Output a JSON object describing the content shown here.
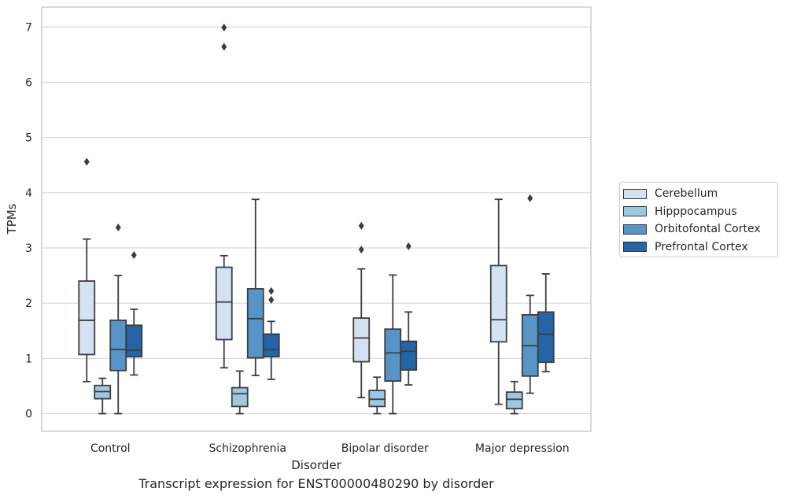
{
  "chart_data": {
    "type": "box",
    "caption": "Transcript expression for ENST00000480290 by disorder",
    "xlabel": "Disorder",
    "ylabel": "TPMs",
    "ylim": [
      -0.32,
      7.36
    ],
    "yticks": [
      0,
      1,
      2,
      3,
      4,
      5,
      6,
      7
    ],
    "grid": "horizontal",
    "legend_position": "right",
    "categories": [
      "Control",
      "Schizophrenia",
      "Bipolar disorder",
      "Major depression"
    ],
    "series": [
      {
        "name": "Cerebellum",
        "color": "#d3e1f0",
        "boxes": [
          {
            "whislo": 0.58,
            "q1": 1.07,
            "med": 1.69,
            "q3": 2.4,
            "whishi": 3.16,
            "fliers": [
              4.56
            ]
          },
          {
            "whislo": 0.83,
            "q1": 1.34,
            "med": 2.02,
            "q3": 2.65,
            "whishi": 2.86,
            "fliers": [
              6.99,
              6.64
            ]
          },
          {
            "whislo": 0.29,
            "q1": 0.94,
            "med": 1.37,
            "q3": 1.73,
            "whishi": 2.62,
            "fliers": [
              3.4,
              2.97
            ]
          },
          {
            "whislo": 0.17,
            "q1": 1.3,
            "med": 1.7,
            "q3": 2.68,
            "whishi": 3.88,
            "fliers": []
          }
        ]
      },
      {
        "name": "Hipppocampus",
        "color": "#9ec8e1",
        "boxes": [
          {
            "whislo": 0.0,
            "q1": 0.27,
            "med": 0.4,
            "q3": 0.51,
            "whishi": 0.64,
            "fliers": []
          },
          {
            "whislo": 0.0,
            "q1": 0.13,
            "med": 0.36,
            "q3": 0.47,
            "whishi": 0.77,
            "fliers": []
          },
          {
            "whislo": 0.0,
            "q1": 0.13,
            "med": 0.26,
            "q3": 0.42,
            "whishi": 0.66,
            "fliers": []
          },
          {
            "whislo": 0.0,
            "q1": 0.09,
            "med": 0.26,
            "q3": 0.39,
            "whishi": 0.58,
            "fliers": []
          }
        ]
      },
      {
        "name": "Orbitofontal Cortex",
        "color": "#5795c8",
        "boxes": [
          {
            "whislo": 0.0,
            "q1": 0.78,
            "med": 1.16,
            "q3": 1.69,
            "whishi": 2.5,
            "fliers": [
              3.37
            ]
          },
          {
            "whislo": 0.69,
            "q1": 1.01,
            "med": 1.72,
            "q3": 2.26,
            "whishi": 3.88,
            "fliers": []
          },
          {
            "whislo": 0.0,
            "q1": 0.59,
            "med": 1.1,
            "q3": 1.53,
            "whishi": 2.51,
            "fliers": []
          },
          {
            "whislo": 0.37,
            "q1": 0.68,
            "med": 1.23,
            "q3": 1.79,
            "whishi": 2.14,
            "fliers": [
              3.9
            ]
          }
        ]
      },
      {
        "name": "Prefrontal Cortex",
        "color": "#2664a8",
        "boxes": [
          {
            "whislo": 0.7,
            "q1": 1.03,
            "med": 1.15,
            "q3": 1.6,
            "whishi": 1.89,
            "fliers": [
              2.87
            ]
          },
          {
            "whislo": 0.62,
            "q1": 1.03,
            "med": 1.16,
            "q3": 1.44,
            "whishi": 1.67,
            "fliers": [
              2.22,
              2.06
            ]
          },
          {
            "whislo": 0.52,
            "q1": 0.79,
            "med": 1.13,
            "q3": 1.31,
            "whishi": 1.84,
            "fliers": [
              3.03
            ]
          },
          {
            "whislo": 0.76,
            "q1": 0.93,
            "med": 1.44,
            "q3": 1.84,
            "whishi": 2.53,
            "fliers": []
          }
        ]
      }
    ]
  }
}
